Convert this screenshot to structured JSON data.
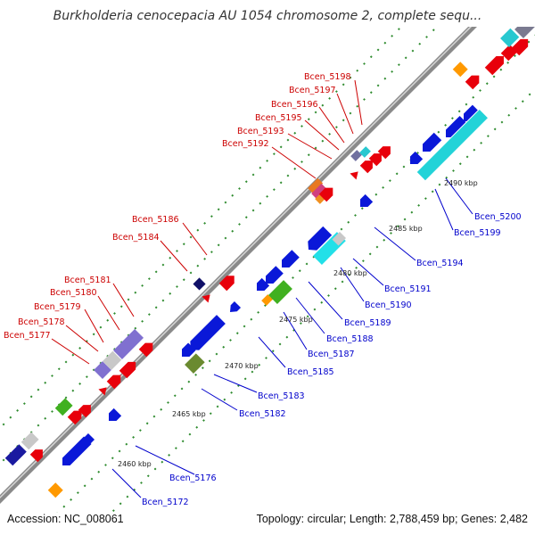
{
  "title": "Burkholderia cenocepacia AU 1054 chromosome 2, complete sequ...",
  "footer": {
    "accession": "Accession: NC_008061",
    "summary": "Topology: circular; Length: 2,788,459 bp; Genes: 2,482"
  },
  "colors": {
    "backbone": "#8a8a8a",
    "dots": "#2e8b2e",
    "forward_label": "#cc0000",
    "reverse_label": "#0000cc",
    "red_gene": "#e8000b",
    "blue_gene": "#0a18d8",
    "cyan_gene": "#22d3d8",
    "purple_gene": "#8070d0",
    "green_gene": "#40b020",
    "orange_gene": "#ff9900",
    "gray_gene": "#b8b8b8",
    "navy_gene": "#101068",
    "olive_gene": "#6a8a30"
  },
  "ticks": [
    "2460 kbp",
    "2465 kbp",
    "2470 kbp",
    "2475 kbp",
    "2480 kbp",
    "2485 kbp",
    "2490 kbp"
  ],
  "forward_labels": [
    "Bcen_5198",
    "Bcen_5197",
    "Bcen_5196",
    "Bcen_5195",
    "Bcen_5193",
    "Bcen_5192",
    "Bcen_5186",
    "Bcen_5184",
    "Bcen_5181",
    "Bcen_5180",
    "Bcen_5179",
    "Bcen_5178",
    "Bcen_5177"
  ],
  "reverse_labels": [
    "Bcen_5200",
    "Bcen_5199",
    "Bcen_5194",
    "Bcen_5191",
    "Bcen_5190",
    "Bcen_5189",
    "Bcen_5188",
    "Bcen_5187",
    "Bcen_5185",
    "Bcen_5183",
    "Bcen_5182",
    "Bcen_5176",
    "Bcen_5172"
  ]
}
